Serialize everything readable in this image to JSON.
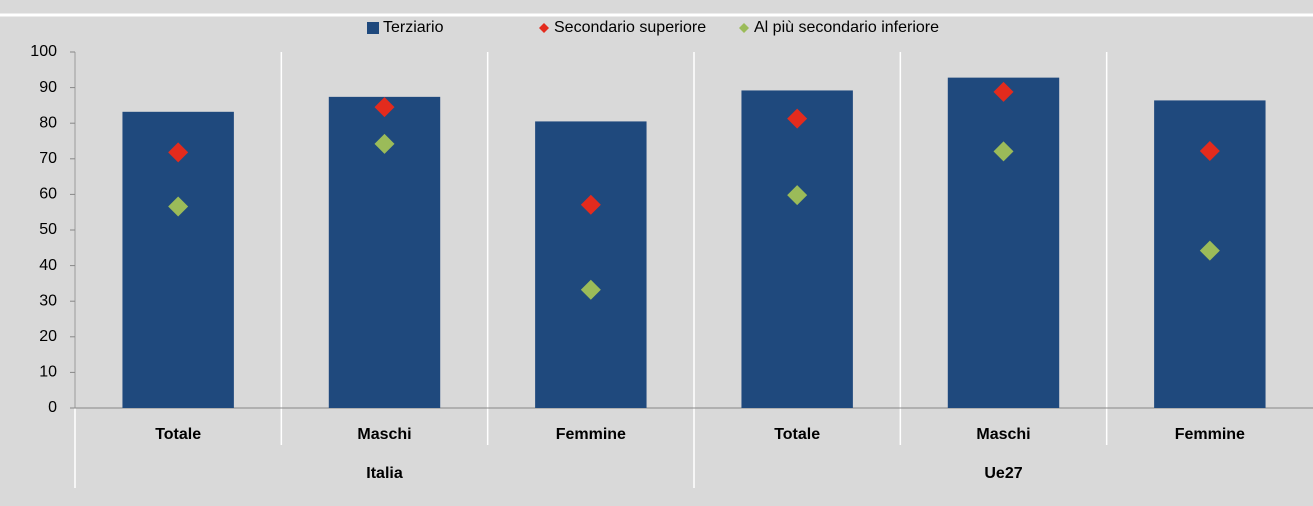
{
  "chart_data": {
    "type": "bar",
    "categories": [
      "Totale",
      "Maschi",
      "Femmine",
      "Totale",
      "Maschi",
      "Femmine"
    ],
    "groups": [
      "Italia",
      "Ue27"
    ],
    "series": [
      {
        "name": "Terziario",
        "color": "#1f497d",
        "kind": "bar",
        "values": [
          83.2,
          87.4,
          80.5,
          89.2,
          92.8,
          86.4
        ]
      },
      {
        "name": "Secondario superiore",
        "color": "#e32b1d",
        "kind": "diamond",
        "values": [
          71.8,
          84.5,
          57.1,
          81.3,
          88.8,
          72.2
        ]
      },
      {
        "name": "Al più secondario inferiore",
        "color": "#9bbb59",
        "kind": "diamond",
        "values": [
          56.6,
          74.2,
          33.2,
          59.8,
          72.1,
          44.2
        ]
      }
    ],
    "ylim": [
      0,
      100
    ],
    "yticks": [
      0,
      10,
      20,
      30,
      40,
      50,
      60,
      70,
      80,
      90,
      100
    ]
  }
}
